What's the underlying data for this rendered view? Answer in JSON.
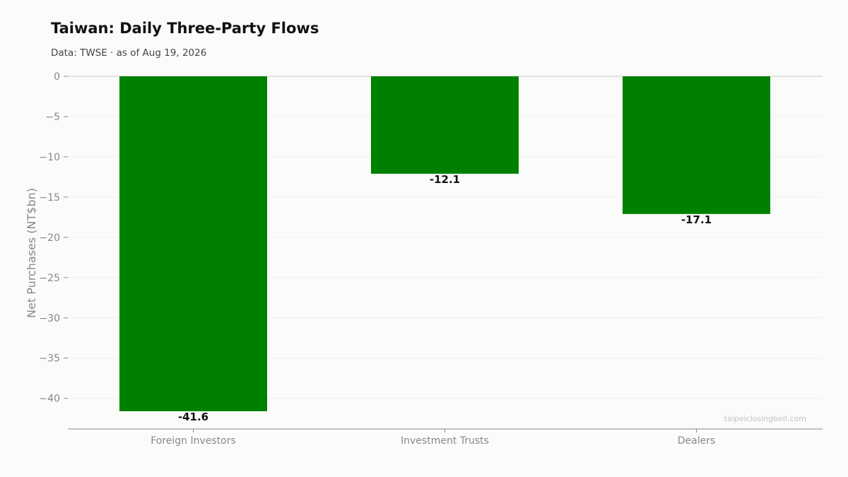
{
  "chart_data": {
    "type": "bar",
    "title": "Taiwan: Daily Three-Party Flows",
    "subtitle": "Data: TWSE · as of Aug 19, 2026",
    "xlabel": "",
    "ylabel": "Net Purchases (NT$bn)",
    "categories": [
      "Foreign Investors",
      "Investment Trusts",
      "Dealers"
    ],
    "values": [
      -41.6,
      -12.1,
      -17.1
    ],
    "data_labels": [
      "-41.6",
      "-12.1",
      "-17.1"
    ],
    "ylim": [
      -43.8,
      0
    ],
    "yticks": [
      0,
      -5,
      -10,
      -15,
      -20,
      -25,
      -30,
      -35,
      -40
    ],
    "ytick_labels": [
      "0",
      "−5",
      "−10",
      "−15",
      "−20",
      "−25",
      "−30",
      "−35",
      "−40"
    ],
    "bar_color": "#008000",
    "grid": true,
    "legend": "none",
    "watermark": "taipeiclosingbell.com"
  }
}
